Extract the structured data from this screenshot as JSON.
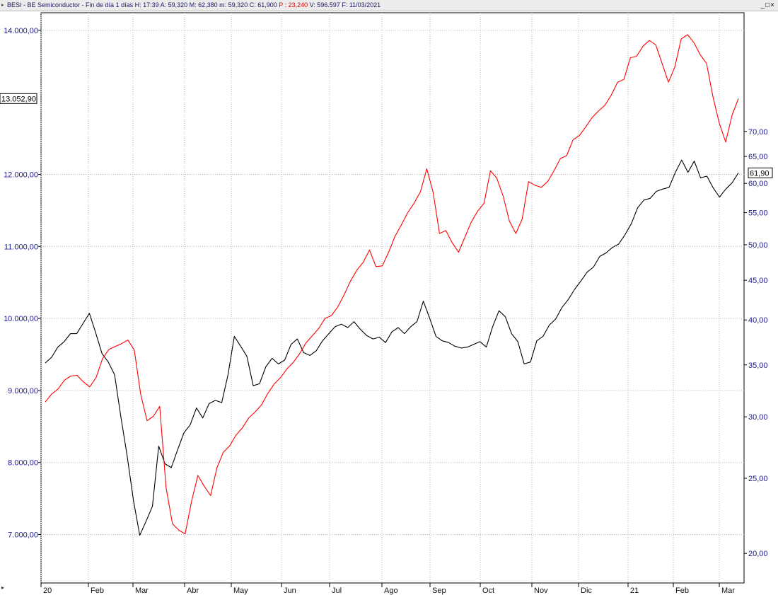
{
  "titlebar": {
    "text": "BESI - BE Semiconductor - Fin de día 1 días  H: 17:39  A: 59,320  M: 62,380  m: 59,320  C: 61,900",
    "p_text": " P : 23,240",
    "rest_text": "  V: 596.597  F: 11/03/2021",
    "window_buttons": "_□×"
  },
  "colors": {
    "primary": "#000000",
    "comparison": "#ff0000",
    "axis_text": "#1a1a8c",
    "grid": "#b4b4b4"
  },
  "chart_data": {
    "type": "line",
    "x_tick_labels": [
      "20",
      "Feb",
      "Mar",
      "Abr",
      "May",
      "Jun",
      "Jul",
      "Ago",
      "Sep",
      "Oct",
      "Nov",
      "Dic",
      "21",
      "Feb",
      "Mar"
    ],
    "left_axis": {
      "ticks": [
        "7.000,00",
        "8.000,00",
        "9.000,00",
        "10.000,00",
        "11.000,00",
        "12.000,00",
        "14.000,00"
      ],
      "current_value_label": "13.052,90"
    },
    "right_axis": {
      "scale": "log",
      "ticks": [
        "20,00",
        "25,00",
        "30,00",
        "35,00",
        "40,00",
        "45,00",
        "50,00",
        "55,00",
        "60,00",
        "65,00",
        "70,00"
      ],
      "current_value_label": "61,90"
    },
    "grid": true,
    "series": [
      {
        "axis": "right",
        "color": "#000000",
        "values": [
          35.2,
          35.8,
          36.9,
          37.5,
          38.4,
          38.4,
          39.6,
          40.8,
          38.5,
          36.2,
          35.3,
          34.0,
          30.0,
          26.7,
          23.4,
          21.1,
          22.0,
          23.0,
          27.5,
          26.1,
          25.8,
          27.2,
          28.6,
          29.3,
          30.8,
          29.9,
          31.2,
          31.5,
          31.3,
          34.0,
          38.1,
          37.0,
          35.9,
          32.9,
          33.1,
          34.8,
          35.7,
          35.1,
          35.5,
          37.2,
          37.8,
          36.3,
          36.0,
          36.5,
          37.6,
          38.4,
          39.2,
          39.5,
          39.1,
          39.8,
          38.9,
          38.2,
          37.8,
          38.0,
          37.4,
          38.6,
          39.1,
          38.4,
          39.2,
          39.8,
          42.3,
          40.2,
          38.1,
          37.6,
          37.4,
          37.0,
          36.8,
          36.9,
          37.2,
          37.5,
          36.9,
          39.2,
          41.1,
          40.4,
          38.4,
          37.5,
          35.1,
          35.3,
          37.6,
          38.1,
          39.4,
          40.1,
          41.5,
          42.5,
          43.8,
          44.9,
          46.1,
          46.8,
          48.3,
          48.8,
          49.6,
          50.1,
          51.5,
          53.2,
          55.8,
          57.1,
          57.4,
          58.6,
          59.0,
          59.3,
          62.0,
          64.3,
          62.0,
          64.1,
          61.0,
          61.3,
          59.2,
          57.6,
          59.0,
          60.1,
          61.9
        ]
      },
      {
        "axis": "left",
        "color": "#ff0000",
        "values": [
          8840,
          8950,
          9020,
          9140,
          9200,
          9210,
          9120,
          9050,
          9180,
          9440,
          9570,
          9610,
          9650,
          9700,
          9560,
          8950,
          8580,
          8640,
          8780,
          7650,
          7150,
          7060,
          7010,
          7460,
          7820,
          7670,
          7540,
          7930,
          8140,
          8230,
          8380,
          8480,
          8620,
          8700,
          8800,
          8960,
          9090,
          9180,
          9300,
          9390,
          9510,
          9660,
          9760,
          9860,
          10000,
          10040,
          10160,
          10330,
          10520,
          10670,
          10780,
          10950,
          10720,
          10730,
          10920,
          11140,
          11300,
          11470,
          11600,
          11760,
          12080,
          11750,
          11180,
          11220,
          11050,
          10920,
          11130,
          11340,
          11490,
          11600,
          12050,
          11950,
          11700,
          11350,
          11180,
          11380,
          11900,
          11850,
          11820,
          11900,
          12050,
          12220,
          12260,
          12480,
          12540,
          12660,
          12790,
          12880,
          12960,
          13100,
          13280,
          13320,
          13620,
          13640,
          13780,
          13860,
          13800,
          13540,
          13280,
          13490,
          13880,
          13940,
          13830,
          13660,
          13540,
          13080,
          12710,
          12450,
          12820,
          13052.9
        ]
      }
    ]
  }
}
